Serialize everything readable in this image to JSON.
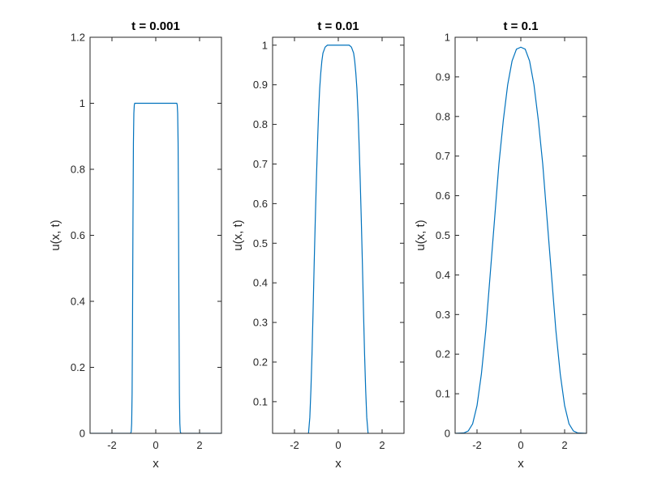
{
  "chart_data": [
    {
      "type": "line",
      "title": "t = 0.001",
      "xlabel": "x",
      "ylabel": "u(x, t)",
      "xlim": [
        -3,
        3
      ],
      "ylim": [
        0,
        1.2
      ],
      "xticks": [
        -2,
        0,
        2
      ],
      "xtick_labels": [
        "-2",
        "0",
        "2"
      ],
      "yticks": [
        0,
        0.2,
        0.4,
        0.6,
        0.8,
        1,
        1.2
      ],
      "ytick_labels": [
        "0",
        "0.2",
        "0.4",
        "0.6",
        "0.8",
        "1",
        "1.2"
      ],
      "line_color": "#0072BD",
      "grid": false,
      "series": [
        {
          "x": [
            -3,
            -1.3,
            -1.15,
            -1.12,
            -1.1,
            -1.08,
            -1.06,
            -1.04,
            -1.02,
            -1.0,
            -0.98,
            -0.96,
            0.96,
            0.98,
            1.0,
            1.02,
            1.04,
            1.06,
            1.08,
            1.1,
            1.12,
            1.15,
            1.3,
            3
          ],
          "y": [
            0,
            0,
            0,
            0.005,
            0.03,
            0.12,
            0.35,
            0.65,
            0.88,
            0.97,
            0.995,
            1.0,
            1.0,
            0.995,
            0.97,
            0.88,
            0.65,
            0.35,
            0.12,
            0.03,
            0.005,
            0,
            0,
            0
          ]
        }
      ]
    },
    {
      "type": "line",
      "title": "t = 0.01",
      "xlabel": "x",
      "ylabel": "u(x, t)",
      "xlim": [
        -3,
        3
      ],
      "ylim": [
        0.02,
        1.02
      ],
      "xticks": [
        -2,
        0,
        2
      ],
      "xtick_labels": [
        "-2",
        "0",
        "2"
      ],
      "yticks": [
        0.1,
        0.2,
        0.3,
        0.4,
        0.5,
        0.6,
        0.7,
        0.8,
        0.9,
        1
      ],
      "ytick_labels": [
        "0.1",
        "0.2",
        "0.3",
        "0.4",
        "0.5",
        "0.6",
        "0.7",
        "0.8",
        "0.9",
        "1"
      ],
      "line_color": "#0072BD",
      "grid": false,
      "series": [
        {
          "x": [
            -1.36,
            -1.3,
            -1.25,
            -1.2,
            -1.15,
            -1.1,
            -1.05,
            -1.0,
            -0.95,
            -0.9,
            -0.85,
            -0.8,
            -0.75,
            -0.7,
            -0.6,
            -0.5,
            -0.4,
            0.4,
            0.5,
            0.6,
            0.7,
            0.75,
            0.8,
            0.85,
            0.9,
            0.95,
            1.0,
            1.05,
            1.1,
            1.15,
            1.2,
            1.25,
            1.3,
            1.36
          ],
          "y": [
            0.02,
            0.06,
            0.13,
            0.22,
            0.33,
            0.45,
            0.56,
            0.66,
            0.75,
            0.83,
            0.89,
            0.93,
            0.96,
            0.98,
            0.995,
            1.0,
            1.0,
            1.0,
            1.0,
            0.995,
            0.98,
            0.96,
            0.93,
            0.89,
            0.83,
            0.75,
            0.66,
            0.56,
            0.45,
            0.33,
            0.22,
            0.13,
            0.06,
            0.02
          ]
        }
      ]
    },
    {
      "type": "line",
      "title": "t = 0.1",
      "xlabel": "x",
      "ylabel": "u(x, t)",
      "xlim": [
        -3,
        3
      ],
      "ylim": [
        0,
        1
      ],
      "xticks": [
        -2,
        0,
        2
      ],
      "xtick_labels": [
        "-2",
        "0",
        "2"
      ],
      "yticks": [
        0,
        0.1,
        0.2,
        0.3,
        0.4,
        0.5,
        0.6,
        0.7,
        0.8,
        0.9,
        1
      ],
      "ytick_labels": [
        "0",
        "0.1",
        "0.2",
        "0.3",
        "0.4",
        "0.5",
        "0.6",
        "0.7",
        "0.8",
        "0.9",
        "1"
      ],
      "line_color": "#0072BD",
      "grid": false,
      "series": [
        {
          "x": [
            -3,
            -2.6,
            -2.4,
            -2.2,
            -2.0,
            -1.8,
            -1.6,
            -1.4,
            -1.2,
            -1.0,
            -0.8,
            -0.6,
            -0.4,
            -0.2,
            0,
            0.2,
            0.4,
            0.6,
            0.8,
            1.0,
            1.2,
            1.4,
            1.6,
            1.8,
            2.0,
            2.2,
            2.4,
            2.6,
            3
          ],
          "y": [
            0,
            0.001,
            0.006,
            0.024,
            0.07,
            0.15,
            0.26,
            0.4,
            0.54,
            0.68,
            0.79,
            0.88,
            0.94,
            0.97,
            0.975,
            0.97,
            0.94,
            0.88,
            0.79,
            0.68,
            0.54,
            0.4,
            0.26,
            0.15,
            0.07,
            0.024,
            0.006,
            0.001,
            0
          ]
        }
      ]
    }
  ]
}
